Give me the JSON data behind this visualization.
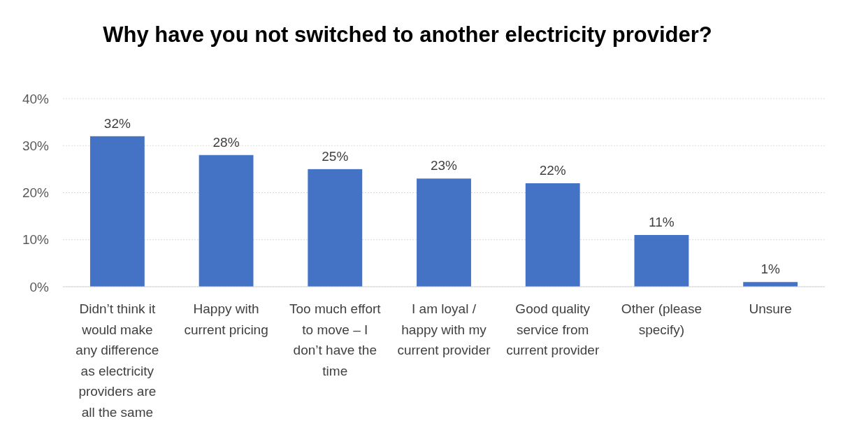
{
  "chart_data": {
    "type": "bar",
    "title": "Why have you not switched to another electricity provider?",
    "categories": [
      "Didn’t think it would make any difference as electricity providers are all the same",
      "Happy with current pricing",
      "Too much effort to move – I don’t have the time",
      "I am loyal / happy with my current provider",
      "Good quality service from current provider",
      "Other (please specify)",
      "Unsure"
    ],
    "values": [
      32,
      28,
      25,
      23,
      22,
      11,
      1
    ],
    "value_labels": [
      "32%",
      "28%",
      "25%",
      "23%",
      "22%",
      "11%",
      "1%"
    ],
    "color": "#4472c4",
    "ylim": [
      0,
      40
    ],
    "yticks": [
      {
        "value": 0,
        "label": "0%"
      },
      {
        "value": 10,
        "label": "10%"
      },
      {
        "value": 20,
        "label": "20%"
      },
      {
        "value": 30,
        "label": "30%"
      },
      {
        "value": 40,
        "label": "40%"
      }
    ],
    "grid": "y"
  }
}
